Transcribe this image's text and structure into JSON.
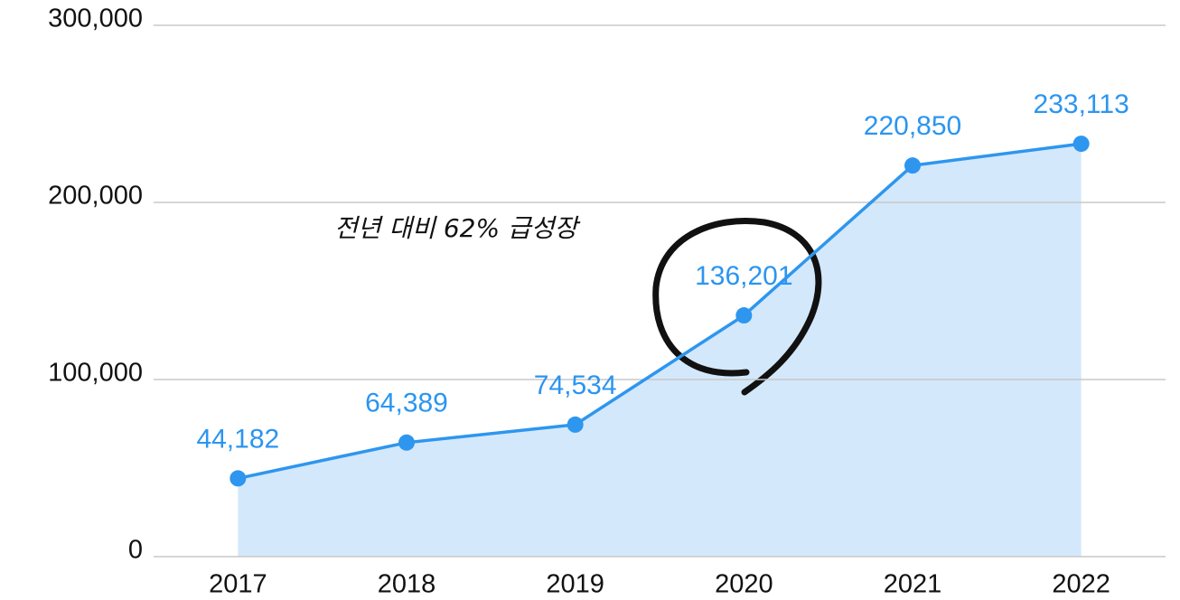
{
  "chart_data": {
    "type": "line",
    "categories": [
      "2017",
      "2018",
      "2019",
      "2020",
      "2021",
      "2022"
    ],
    "values": [
      44182,
      64389,
      74534,
      136201,
      220850,
      233113
    ],
    "value_labels": [
      "44,182",
      "64,389",
      "74,534",
      "136,201",
      "220,850",
      "233,113"
    ],
    "color": "#2e96ee",
    "area_color": "#d4e8fb",
    "ylim": [
      0,
      300000
    ],
    "yticks": [
      0,
      {
        "value": 100000,
        "label": "100,000"
      },
      {
        "value": 200000,
        "label": "200,000"
      },
      {
        "value": 300000,
        "label": "300,000"
      }
    ],
    "grid": true,
    "annotation": "전년 대비 62% 급성장"
  }
}
